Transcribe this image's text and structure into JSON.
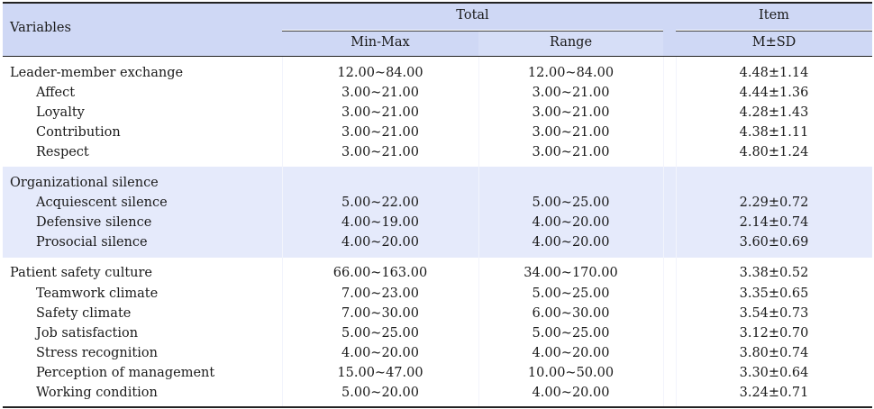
{
  "header": {
    "variables": "Variables",
    "total": "Total",
    "item": "Item",
    "minmax": "Min-Max",
    "range": "Range",
    "msd": "M±SD"
  },
  "groups": [
    {
      "shaded": false,
      "rows": [
        {
          "label": "Leader-member exchange",
          "indent": false,
          "minmax": "12.00~84.00",
          "range": "12.00~84.00",
          "msd": "4.48±1.14"
        },
        {
          "label": "Affect",
          "indent": true,
          "minmax": "3.00~21.00",
          "range": "3.00~21.00",
          "msd": "4.44±1.36"
        },
        {
          "label": "Loyalty",
          "indent": true,
          "minmax": "3.00~21.00",
          "range": "3.00~21.00",
          "msd": "4.28±1.43"
        },
        {
          "label": "Contribution",
          "indent": true,
          "minmax": "3.00~21.00",
          "range": "3.00~21.00",
          "msd": "4.38±1.11"
        },
        {
          "label": "Respect",
          "indent": true,
          "minmax": "3.00~21.00",
          "range": "3.00~21.00",
          "msd": "4.80±1.24"
        }
      ]
    },
    {
      "shaded": true,
      "rows": [
        {
          "label": "Organizational silence",
          "indent": false,
          "minmax": "",
          "range": "",
          "msd": ""
        },
        {
          "label": "Acquiescent silence",
          "indent": true,
          "minmax": "5.00~22.00",
          "range": "5.00~25.00",
          "msd": "2.29±0.72"
        },
        {
          "label": "Defensive silence",
          "indent": true,
          "minmax": "4.00~19.00",
          "range": "4.00~20.00",
          "msd": "2.14±0.74"
        },
        {
          "label": "Prosocial silence",
          "indent": true,
          "minmax": "4.00~20.00",
          "range": "4.00~20.00",
          "msd": "3.60±0.69"
        }
      ]
    },
    {
      "shaded": false,
      "rows": [
        {
          "label": "Patient safety culture",
          "indent": false,
          "minmax": "66.00~163.00",
          "range": "34.00~170.00",
          "msd": "3.38±0.52"
        },
        {
          "label": "Teamwork climate",
          "indent": true,
          "minmax": "7.00~23.00",
          "range": "5.00~25.00",
          "msd": "3.35±0.65"
        },
        {
          "label": "Safety climate",
          "indent": true,
          "minmax": "7.00~30.00",
          "range": "6.00~30.00",
          "msd": "3.54±0.73"
        },
        {
          "label": "Job satisfaction",
          "indent": true,
          "minmax": "5.00~25.00",
          "range": "5.00~25.00",
          "msd": "3.12±0.70"
        },
        {
          "label": "Stress recognition",
          "indent": true,
          "minmax": "4.00~20.00",
          "range": "4.00~20.00",
          "msd": "3.80±0.74"
        },
        {
          "label": "Perception of management",
          "indent": true,
          "minmax": "15.00~47.00",
          "range": "10.00~50.00",
          "msd": "3.30±0.64"
        },
        {
          "label": "Working condition",
          "indent": true,
          "minmax": "5.00~20.00",
          "range": "4.00~20.00",
          "msd": "3.24±0.71"
        }
      ]
    }
  ]
}
